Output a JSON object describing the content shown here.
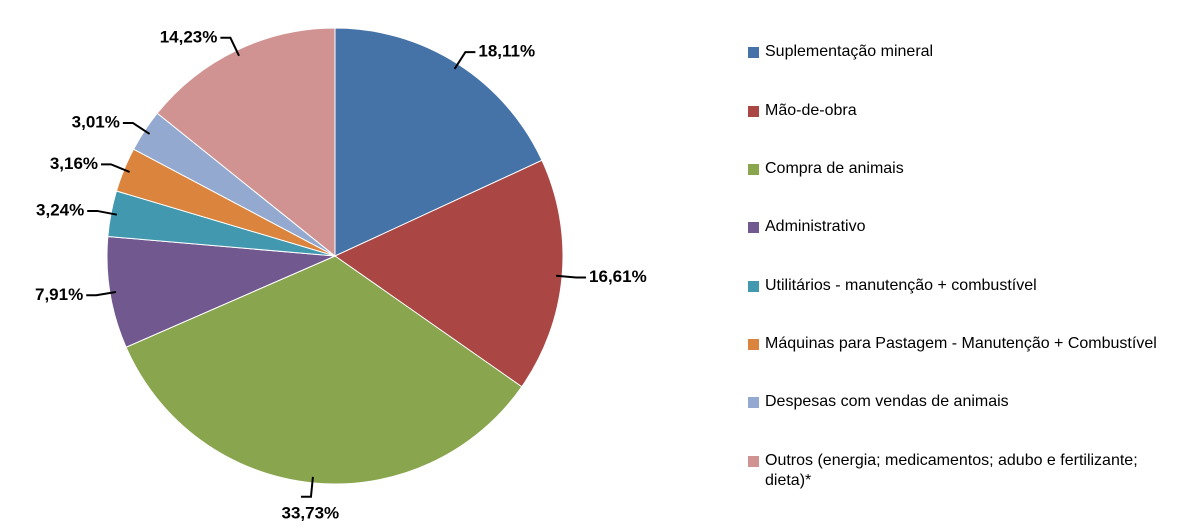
{
  "chart_data": {
    "type": "pie",
    "categories": [
      "Suplementação mineral",
      "Mão-de-obra",
      "Compra de animais",
      "Administrativo",
      "Utilitários - manutenção + combustível",
      "Máquinas para Pastagem - Manutenção + Combustível",
      "Despesas com vendas de animais",
      "Outros (energia; medicamentos; adubo e fertilizante; dieta)*"
    ],
    "values": [
      18.11,
      16.61,
      33.73,
      7.91,
      3.24,
      3.16,
      3.01,
      14.23
    ],
    "value_labels": [
      "18,11%",
      "16,61%",
      "33,73%",
      "7,91%",
      "3,24%",
      "3,16%",
      "3,01%",
      "14,23%"
    ],
    "colors": [
      "#4572a7",
      "#aa4643",
      "#89a54e",
      "#71588f",
      "#4198af",
      "#db843d",
      "#93a9cf",
      "#d19392"
    ]
  }
}
